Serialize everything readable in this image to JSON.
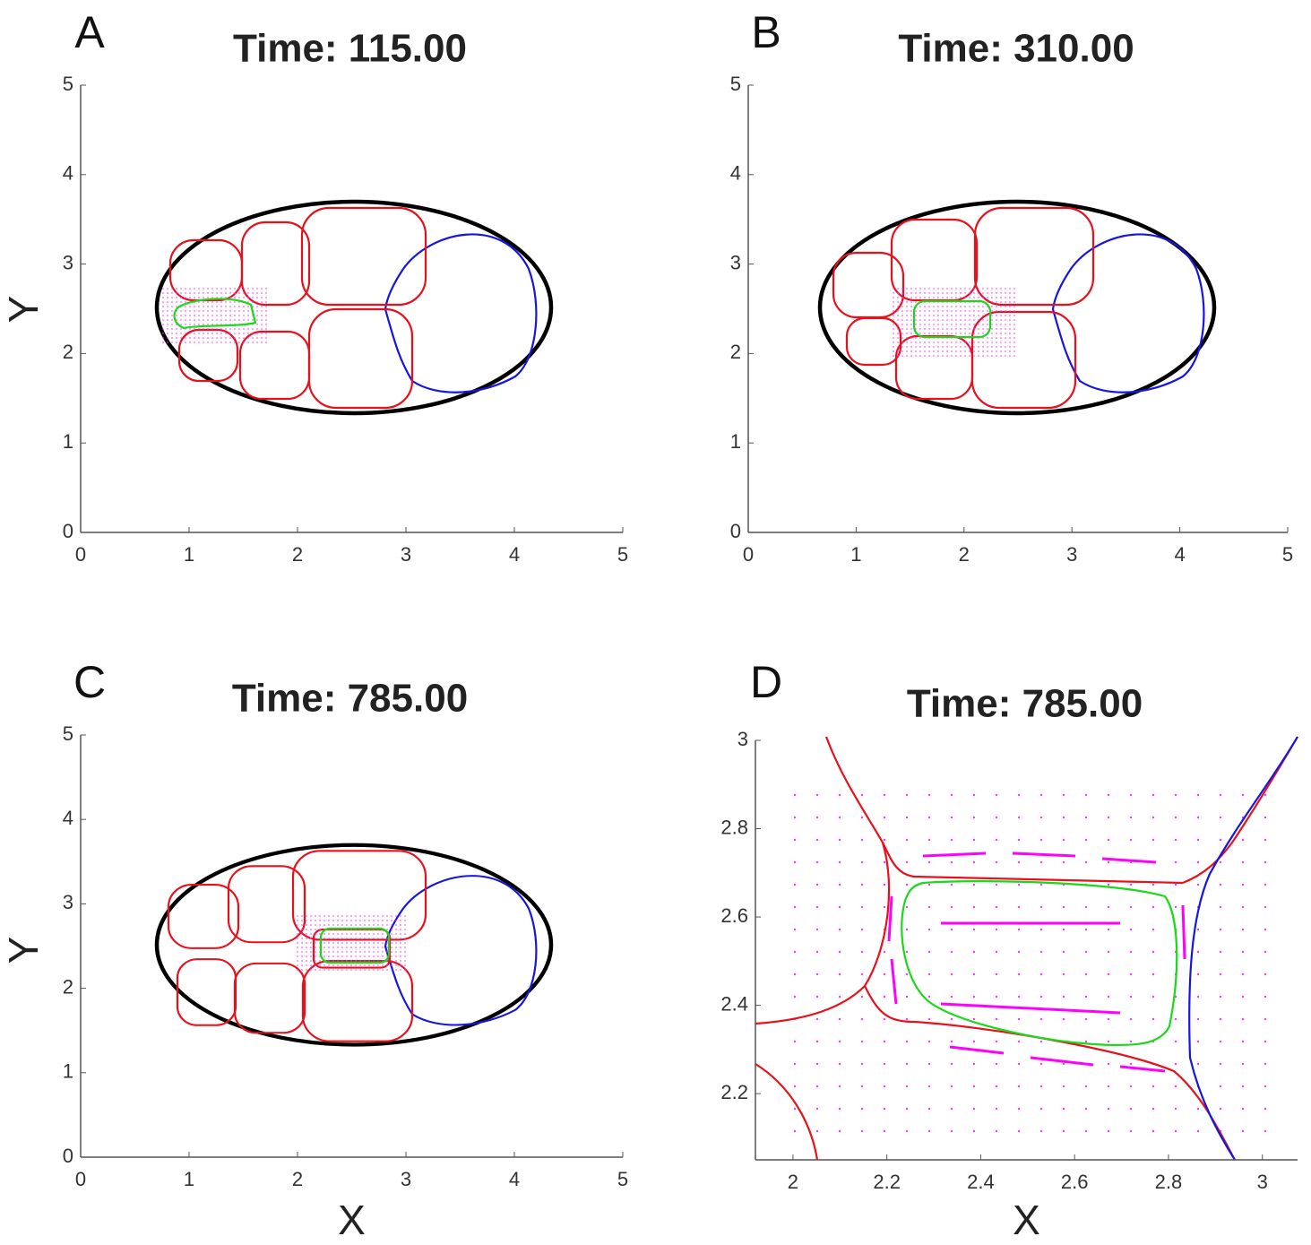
{
  "chart_data": [
    {
      "type": "line",
      "panel_label": "A",
      "title": "Time: 115.00",
      "ylabel": "Y",
      "xlim": [
        0,
        5
      ],
      "ylim": [
        0,
        5
      ],
      "xticks": [
        0,
        1,
        2,
        3,
        4,
        5
      ],
      "yticks": [
        0,
        1,
        2,
        3,
        4,
        5
      ]
    },
    {
      "type": "line",
      "panel_label": "B",
      "title": "Time: 310.00",
      "xlim": [
        0,
        5
      ],
      "ylim": [
        0,
        5
      ],
      "xticks": [
        0,
        1,
        2,
        3,
        4,
        5
      ],
      "yticks": [
        0,
        1,
        2,
        3,
        4,
        5
      ]
    },
    {
      "type": "line",
      "panel_label": "C",
      "title": "Time: 785.00",
      "xlabel": "X",
      "ylabel": "Y",
      "xlim": [
        0,
        5
      ],
      "ylim": [
        0,
        5
      ],
      "xticks": [
        0,
        1,
        2,
        3,
        4,
        5
      ],
      "yticks": [
        0,
        1,
        2,
        3,
        4,
        5
      ]
    },
    {
      "type": "line",
      "panel_label": "D",
      "title": "Time: 785.00",
      "xlabel": "X",
      "xlim": [
        1.92,
        3.075
      ],
      "ylim": [
        2.05,
        3
      ],
      "xticks": [
        2,
        2.2,
        2.4,
        2.6,
        2.8,
        3
      ],
      "yticks": [
        2.2,
        2.4,
        2.6,
        2.8,
        3
      ]
    }
  ]
}
